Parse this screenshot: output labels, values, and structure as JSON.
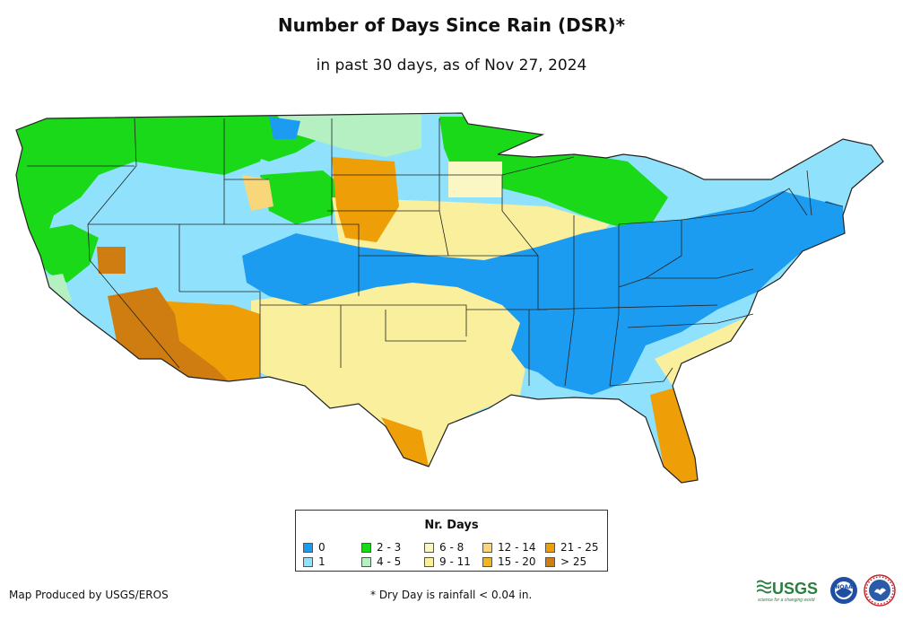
{
  "title": "Number of Days Since Rain (DSR)*",
  "subtitle": "in past 30 days, as of Nov 27, 2024",
  "legend": {
    "title": "Nr. Days",
    "items": [
      {
        "label": "0",
        "color": "#1c9cf0"
      },
      {
        "label": "1",
        "color": "#90e2fc"
      },
      {
        "label": "2 - 3",
        "color": "#19d919"
      },
      {
        "label": "4 - 5",
        "color": "#b4f0c2"
      },
      {
        "label": "6 - 8",
        "color": "#fbf7c4"
      },
      {
        "label": "9 - 11",
        "color": "#f9ef9c"
      },
      {
        "label": "12 - 14",
        "color": "#f8d77a"
      },
      {
        "label": "15 - 20",
        "color": "#f3b424"
      },
      {
        "label": "21 - 25",
        "color": "#ee9f08"
      },
      {
        "label": "> 25",
        "color": "#cf7c11"
      }
    ]
  },
  "credit": "Map Produced by USGS/EROS",
  "footnote": "* Dry Day is rainfall < 0.04 in.",
  "logos": {
    "usgs_text": "USGS",
    "usgs_tagline": "science for a changing world",
    "noaa_text": "NOAA"
  }
}
